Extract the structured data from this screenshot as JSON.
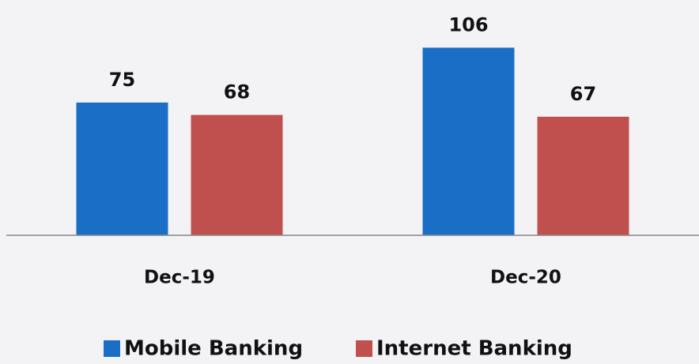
{
  "chart_data": {
    "type": "bar",
    "categories": [
      "Dec-19",
      "Dec-20"
    ],
    "series": [
      {
        "name": "Mobile Banking",
        "color": "#1a6ec6",
        "values": [
          75,
          106
        ]
      },
      {
        "name": "Internet Banking",
        "color": "#c0504d",
        "values": [
          68,
          67
        ]
      }
    ],
    "ylim": [
      0,
      120
    ],
    "legend": "bottom"
  }
}
